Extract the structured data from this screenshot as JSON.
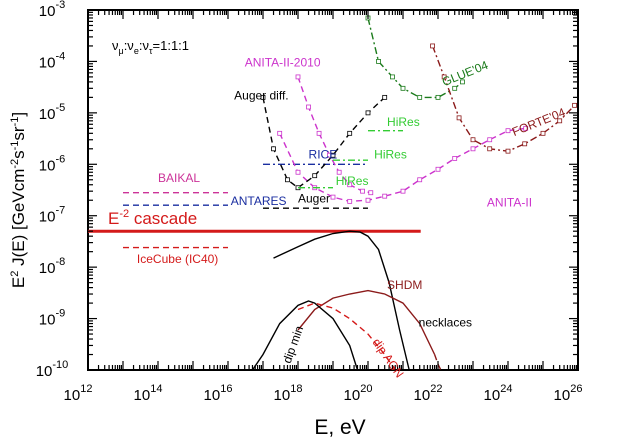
{
  "chart_data": {
    "type": "line",
    "title": "",
    "xlabel": "E, eV",
    "ylabel": "E² J(E) [GeVcm⁻²s⁻¹sr⁻¹]",
    "xscale": "log",
    "yscale": "log",
    "xlim": [
      1000000000000.0,
      1e+26
    ],
    "ylim": [
      1e-10,
      0.001
    ],
    "grid": false,
    "x_ticks": [
      {
        "value": 1000000000000.0,
        "base": "10",
        "exp": "12"
      },
      {
        "value": 100000000000000.0,
        "base": "10",
        "exp": "14"
      },
      {
        "value": 1e+16,
        "base": "10",
        "exp": "16"
      },
      {
        "value": 1e+18,
        "base": "10",
        "exp": "18"
      },
      {
        "value": 1e+20,
        "base": "10",
        "exp": "20"
      },
      {
        "value": 1e+22,
        "base": "10",
        "exp": "22"
      },
      {
        "value": 1e+24,
        "base": "10",
        "exp": "24"
      },
      {
        "value": 1e+26,
        "base": "10",
        "exp": "26"
      }
    ],
    "y_ticks": [
      {
        "value": 1e-10,
        "base": "10",
        "exp": "-10"
      },
      {
        "value": 1e-09,
        "base": "10",
        "exp": "-9"
      },
      {
        "value": 1e-08,
        "base": "10",
        "exp": "-8"
      },
      {
        "value": 1e-07,
        "base": "10",
        "exp": "-7"
      },
      {
        "value": 1e-06,
        "base": "10",
        "exp": "-6"
      },
      {
        "value": 1e-05,
        "base": "10",
        "exp": "-5"
      },
      {
        "value": 0.0001,
        "base": "10",
        "exp": "-4"
      },
      {
        "value": 0.001,
        "base": "10",
        "exp": "-3"
      }
    ],
    "flavor_note": "ν_μ:ν_e:ν_τ=1:1:1",
    "series": [
      {
        "name": "E⁻² cascade",
        "color": "#d41a1a",
        "dash": "solid",
        "width": 3,
        "x": [
          1000000000000.0,
          3.2e+21
        ],
        "y": [
          5e-08,
          5e-08
        ]
      },
      {
        "name": "BAIKAL",
        "color": "#cc3399",
        "dash": "dash",
        "x": [
          10000000000000.0,
          1e+16
        ],
        "y": [
          2.8e-07,
          2.8e-07
        ]
      },
      {
        "name": "ANTARES",
        "color": "#1a2ea0",
        "dash": "dash",
        "x": [
          10000000000000.0,
          1e+16
        ],
        "y": [
          1.6e-07,
          1.6e-07
        ]
      },
      {
        "name": "IceCube (IC40)",
        "color": "#d41a1a",
        "dash": "dash",
        "x": [
          10000000000000.0,
          1e+16
        ],
        "y": [
          2.4e-08,
          2.4e-08
        ]
      },
      {
        "name": "RICE",
        "color": "#1a2ea0",
        "dash": "dashdot",
        "x": [
          1e+17,
          1e+20
        ],
        "y": [
          1e-06,
          1e-06
        ]
      },
      {
        "name": "Auger",
        "color": "#000000",
        "dash": "dash",
        "x": [
          1e+17,
          1e+20
        ],
        "y": [
          1.4e-07,
          1.4e-07
        ]
      },
      {
        "name": "ANITA-II",
        "color": "#cc33cc",
        "dash": "dash",
        "markers": true,
        "x": [
          3e+17,
          1e+18,
          3e+18,
          1e+19,
          3e+19,
          1e+20,
          3e+20,
          1e+21,
          3e+21,
          1e+22,
          3e+22,
          1e+23,
          3e+23,
          1e+24,
          3.2e+24
        ],
        "y": [
          4e-06,
          7e-07,
          3.5e-07,
          2.3e-07,
          1.9e-07,
          2e-07,
          2.4e-07,
          3e-07,
          5e-07,
          8e-07,
          1.3e-06,
          2e-06,
          3e-06,
          4.5e-06,
          5e-06
        ]
      },
      {
        "name": "ANITA-II-2010",
        "color": "#cc33cc",
        "dash": "dash",
        "markers": true,
        "x": [
          1e+18,
          2e+18,
          4e+18,
          8e+18,
          1.5e+19,
          3e+19,
          7e+19,
          1.2e+20
        ],
        "y": [
          5e-05,
          1.3e-05,
          4e-06,
          1.5e-06,
          7e-07,
          4e-07,
          3e-07,
          2.8e-07
        ]
      },
      {
        "name": "Auger diff.",
        "color": "#000000",
        "dash": "dash",
        "markers": true,
        "x": [
          1e+17,
          2e+17,
          5e+17,
          1e+18,
          3e+18,
          1e+19,
          3e+19,
          1e+20,
          3e+20
        ],
        "y": [
          2e-05,
          2e-06,
          5e-07,
          3.5e-07,
          6e-07,
          1.5e-06,
          4e-06,
          1e-05,
          2e-05
        ]
      },
      {
        "name": "GLUE'04",
        "color": "#1a7a1a",
        "dash": "dashdot",
        "markers": true,
        "x": [
          1e+20,
          2e+20,
          5e+20,
          1e+21,
          3e+21,
          1e+22,
          3e+22,
          5e+22
        ],
        "y": [
          0.0007,
          0.0001,
          5e-05,
          3e-05,
          2e-05,
          2e-05,
          3e-05,
          4e-05
        ]
      },
      {
        "name": "FORTE'04",
        "color": "#8b1a1a",
        "dash": "dashdot",
        "markers": true,
        "x": [
          7e+21,
          1.5e+22,
          4e+22,
          1e+23,
          3e+23,
          1e+24,
          3e+24,
          1e+25,
          3e+25,
          8e+25
        ],
        "y": [
          0.0002,
          5e-05,
          8e-06,
          3e-06,
          2e-06,
          1.8e-06,
          2.5e-06,
          4e-06,
          7e-06,
          1.4e-05
        ]
      },
      {
        "name": "HiRes",
        "color": "#33cc33",
        "dash": "dashdot",
        "x": [
          1e+18,
          1e+19
        ],
        "y": [
          3.5e-07,
          3.5e-07
        ]
      },
      {
        "name": "HiRes",
        "color": "#33cc33",
        "dash": "dashdot",
        "x": [
          1e+19,
          1e+20
        ],
        "y": [
          1.2e-06,
          1.2e-06
        ]
      },
      {
        "name": "HiRes",
        "color": "#33cc33",
        "dash": "dashdot",
        "x": [
          1e+20,
          1e+21
        ],
        "y": [
          4.5e-06,
          4.5e-06
        ]
      },
      {
        "name": "necklaces",
        "color": "#000000",
        "dash": "solid",
        "x": [
          2e+17,
          1e+18,
          3e+18,
          1e+19,
          3e+19,
          6e+19,
          1e+20,
          2e+20,
          4e+20,
          8e+20,
          1.5e+21
        ],
        "y": [
          1.5e-08,
          2.5e-08,
          3.5e-08,
          4.5e-08,
          5e-08,
          4.8e-08,
          4e-08,
          2.2e-08,
          5e-09,
          6e-10,
          1e-10
        ]
      },
      {
        "name": "SHDM",
        "color": "#8b1a1a",
        "dash": "solid",
        "x": [
          1e+18,
          3e+18,
          1e+19,
          3e+19,
          1e+20,
          3e+20,
          1e+21,
          3e+21,
          8e+21
        ],
        "y": [
          6e-10,
          1.5e-09,
          2.5e-09,
          3e-09,
          3.5e-09,
          3e-09,
          2e-09,
          8e-10,
          2e-10
        ]
      },
      {
        "name": "SHDM",
        "color": "#8b1a1a",
        "dash": "dash",
        "x": [
          8e+21,
          1e+22,
          1.2e+22
        ],
        "y": [
          2e-10,
          1.3e-10,
          1e-10
        ]
      },
      {
        "name": "dip min",
        "color": "#000000",
        "dash": "solid",
        "x": [
          5e+16,
          1e+17,
          3e+17,
          1e+18,
          2e+18,
          3e+18,
          1e+19,
          3e+19,
          5e+19
        ],
        "y": [
          1e-10,
          2e-10,
          8e-10,
          1.8e-09,
          2.2e-09,
          2e-09,
          1e-09,
          3e-10,
          1e-10
        ]
      },
      {
        "name": "dip AGN",
        "color": "#d41a1a",
        "dash": "dash",
        "x": [
          1e+18,
          3e+18,
          1e+19,
          3e+19,
          1e+20,
          3e+20,
          6e+20
        ],
        "y": [
          1.5e-09,
          2e-09,
          1.6e-09,
          1e-09,
          5e-10,
          2e-10,
          1e-10
        ]
      }
    ],
    "annotations": [
      {
        "text": "ANITA-II-2010",
        "x": 3e+16,
        "y": 8e-05,
        "color": "#cc33cc",
        "anchor": "start"
      },
      {
        "text": "Auger diff.",
        "x": 1.5e+16,
        "y": 1.8e-05,
        "color": "#000000",
        "anchor": "start"
      },
      {
        "text": "GLUE'04",
        "x": 1.5e+22,
        "y": 3.3e-05,
        "color": "#1a7a1a",
        "anchor": "start",
        "rotate": -22
      },
      {
        "text": "FORTE'04",
        "x": 1.5e+24,
        "y": 3.5e-06,
        "color": "#8b1a1a",
        "anchor": "start",
        "rotate": -22
      },
      {
        "text": "HiRes",
        "x": 3.5e+20,
        "y": 5.5e-06,
        "color": "#33cc33",
        "anchor": "start"
      },
      {
        "text": "HiRes",
        "x": 1.5e+20,
        "y": 1.3e-06,
        "color": "#33cc33",
        "anchor": "start"
      },
      {
        "text": "HiRes",
        "x": 1.2e+19,
        "y": 4e-07,
        "color": "#33cc33",
        "anchor": "start"
      },
      {
        "text": "RICE",
        "x": 2e+18,
        "y": 1.3e-06,
        "color": "#1a2ea0",
        "anchor": "start"
      },
      {
        "text": "Auger",
        "x": 1e+18,
        "y": 1.8e-07,
        "color": "#000000",
        "anchor": "start"
      },
      {
        "text": "ANITA-II",
        "x": 2.5e+23,
        "y": 1.5e-07,
        "color": "#cc33cc",
        "anchor": "start"
      },
      {
        "text": "BAIKAL",
        "x": 100000000000000.0,
        "y": 4.5e-07,
        "color": "#cc3399",
        "anchor": "start"
      },
      {
        "text": "ANTARES",
        "x": 1.2e+16,
        "y": 1.6e-07,
        "color": "#1a2ea0",
        "anchor": "start"
      },
      {
        "text": "IceCube (IC40)",
        "x": 25000000000000.0,
        "y": 1.2e-08,
        "color": "#d41a1a",
        "anchor": "start"
      },
      {
        "text": "SHDM",
        "x": 3.5e+20,
        "y": 3.8e-09,
        "color": "#8b1a1a",
        "anchor": "start"
      },
      {
        "text": "necklaces",
        "x": 2.8e+21,
        "y": 7e-10,
        "color": "#000000",
        "anchor": "start"
      },
      {
        "text": "dip min",
        "x": 6e+17,
        "y": 1.3e-10,
        "color": "#000000",
        "anchor": "start",
        "rotate": -70
      },
      {
        "text": "dip AGN",
        "x": 1.3e+20,
        "y": 3.5e-10,
        "color": "#d41a1a",
        "anchor": "start",
        "rotate": 55
      }
    ]
  }
}
